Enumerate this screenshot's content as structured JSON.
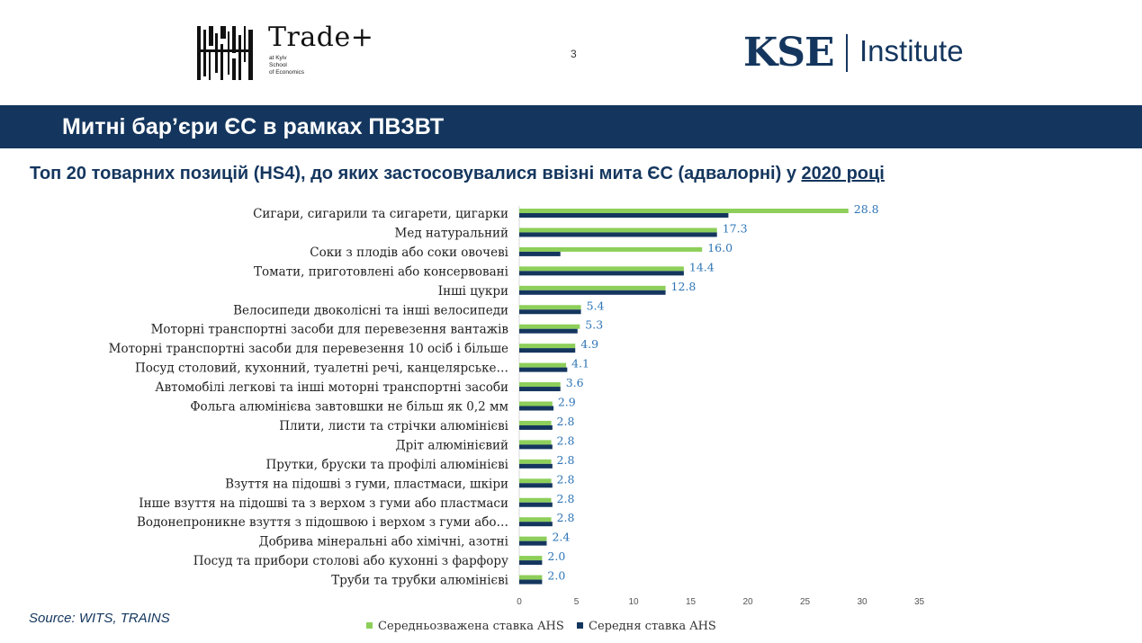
{
  "header": {
    "page_number": "3",
    "tradeplus": {
      "name": "Trade+",
      "sub_line1": "at Kyiv",
      "sub_line2": "School",
      "sub_line3": "of Economics"
    },
    "kse": {
      "mark": "KSE",
      "institute": "Institute"
    }
  },
  "banner": {
    "title": "Митні бар’єри ЄС в рамках ПВЗВТ"
  },
  "subtitle": {
    "main": "Топ 20 товарних позицій (HS4), до яких застосовувалися ввізні мита ЄС (адвалорні) у ",
    "year": "2020 році"
  },
  "source": "Source: WITS, TRAINS",
  "colors": {
    "navy": "#14365e",
    "green": "#8dcf5a",
    "value_label": "#2e75b6"
  },
  "chart_data": {
    "type": "bar",
    "orientation": "horizontal",
    "title": "Топ 20 товарних позицій (HS4), до яких застосовувалися ввізні мита ЄС (адвалорні) у 2020 році",
    "xlim": [
      0,
      35
    ],
    "x_ticks": [
      "0",
      "5",
      "10",
      "15",
      "20",
      "25",
      "30",
      "35"
    ],
    "grid": false,
    "legend_position": "bottom",
    "categories": [
      "Сигари, сигарили та сигарети, цигарки",
      "Мед натуральний",
      "Соки з плодів або соки овочеві",
      "Томати, приготовлені або консервовані",
      "Інші цукри",
      "Велосипеди двоколісні та інші велосипеди",
      "Моторні транспортні засоби для перевезення вантажів",
      "Моторні транспортні засоби для перевезення 10 осіб і більше",
      "Посуд столовий, кухонний, туалетні речі, канцелярське…",
      "Автомобілі легкові та інші моторні транспортні засоби",
      "Фольга алюмінієва завтовшки не більш як 0,2 мм",
      "Плити, листи та стрічки алюмінієві",
      "Дріт алюмінієвий",
      "Прутки, бруски та профілі алюмінієві",
      "Взуття на підошві з гуми, пластмаси, шкіри",
      "Інше взуття на підошві та з верхом з гуми або пластмаси",
      "Водонепроникне взуття з підошвою і верхом з гуми або…",
      "Добрива мінеральні або хімічні, азотні",
      "Посуд та прибори столові або кухонні з фарфору",
      "Труби та трубки алюмінієві"
    ],
    "series": [
      {
        "name": "Середньозважена ставка AHS",
        "color": "#8dcf5a",
        "values": [
          28.8,
          17.3,
          16.0,
          14.4,
          12.8,
          5.4,
          5.3,
          4.9,
          4.1,
          3.6,
          2.9,
          2.8,
          2.8,
          2.8,
          2.8,
          2.8,
          2.8,
          2.4,
          2.0,
          2.0
        ],
        "value_labels": [
          "28.8",
          "17.3",
          "16.0",
          "14.4",
          "12.8",
          "5.4",
          "5.3",
          "4.9",
          "4.1",
          "3.6",
          "2.9",
          "2.8",
          "2.8",
          "2.8",
          "2.8",
          "2.8",
          "2.8",
          "2.4",
          "2.0",
          "2.0"
        ]
      },
      {
        "name": "Середня ставка AHS",
        "color": "#14365e",
        "values": [
          18.3,
          17.3,
          3.6,
          14.4,
          12.8,
          5.4,
          5.1,
          4.9,
          4.2,
          3.6,
          3.0,
          2.9,
          2.9,
          2.9,
          2.9,
          2.9,
          2.9,
          2.4,
          2.0,
          2.0
        ]
      }
    ]
  }
}
